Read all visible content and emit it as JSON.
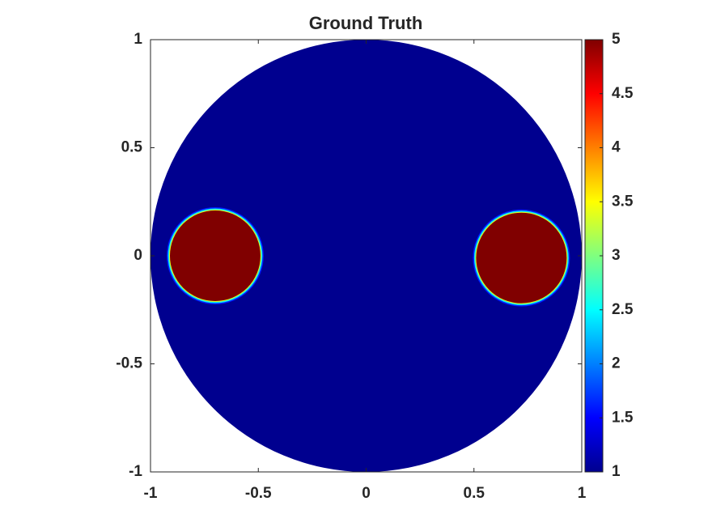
{
  "chart_data": {
    "type": "field",
    "title": "Ground Truth",
    "xlim": [
      -1,
      1
    ],
    "ylim": [
      -1,
      1
    ],
    "xticks": [
      -1,
      -0.5,
      0,
      0.5,
      1
    ],
    "yticks": [
      -1,
      -0.5,
      0,
      0.5,
      1
    ],
    "colormap": "jet",
    "clim": [
      1,
      5
    ],
    "cticks": [
      1,
      1.5,
      2,
      2.5,
      3,
      3.5,
      4,
      4.5,
      5
    ],
    "domain": {
      "x": 0,
      "y": 0,
      "radius": 1,
      "value": 1
    },
    "inclusions": [
      {
        "x": -0.7,
        "y": 0.0,
        "radius": 0.21,
        "value": 5
      },
      {
        "x": 0.72,
        "y": -0.01,
        "radius": 0.21,
        "value": 5
      }
    ]
  }
}
